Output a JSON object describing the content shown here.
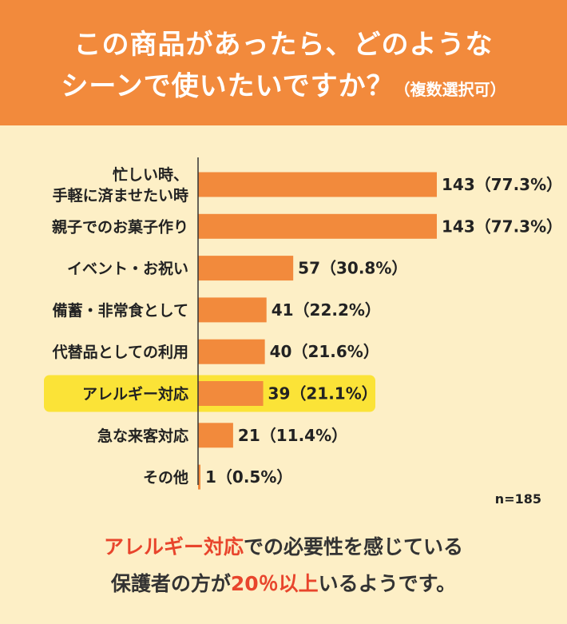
{
  "header": {
    "title_line1": "この商品があったら、どのような",
    "title_line2": "シーンで使いたいですか？",
    "title_note": "（複数選択可）"
  },
  "colors": {
    "header_bg": "#f28a3c",
    "page_bg": "#fdefc6",
    "bar": "#f28a3c",
    "highlight": "#fbe337",
    "emphasis_text": "#e8452c"
  },
  "chart_data": {
    "type": "bar",
    "orientation": "horizontal",
    "categories": [
      "忙しい時、\n手軽に済ませたい時",
      "親子でのお菓子作り",
      "イベント・お祝い",
      "備蓄・非常食として",
      "代替品としての利用",
      "アレルギー対応",
      "急な来客対応",
      "その他"
    ],
    "values": [
      143,
      143,
      57,
      41,
      40,
      39,
      21,
      1
    ],
    "value_labels": [
      "143（77.3%）",
      "143（77.3%）",
      "57（30.8%）",
      "41（22.2%）",
      "40（21.6%）",
      "39（21.1%）",
      "21（11.4%）",
      "1（0.5%）"
    ],
    "highlighted_category": "アレルギー対応",
    "xlim": [
      0,
      143
    ],
    "sample_size": "n=185"
  },
  "footer": {
    "line1_emphasis": "アレルギー対応",
    "line1_rest": "での必要性を感じている",
    "line2_start": "保護者の方が",
    "line2_emphasis": "20％以上",
    "line2_end": "いるようです。"
  }
}
